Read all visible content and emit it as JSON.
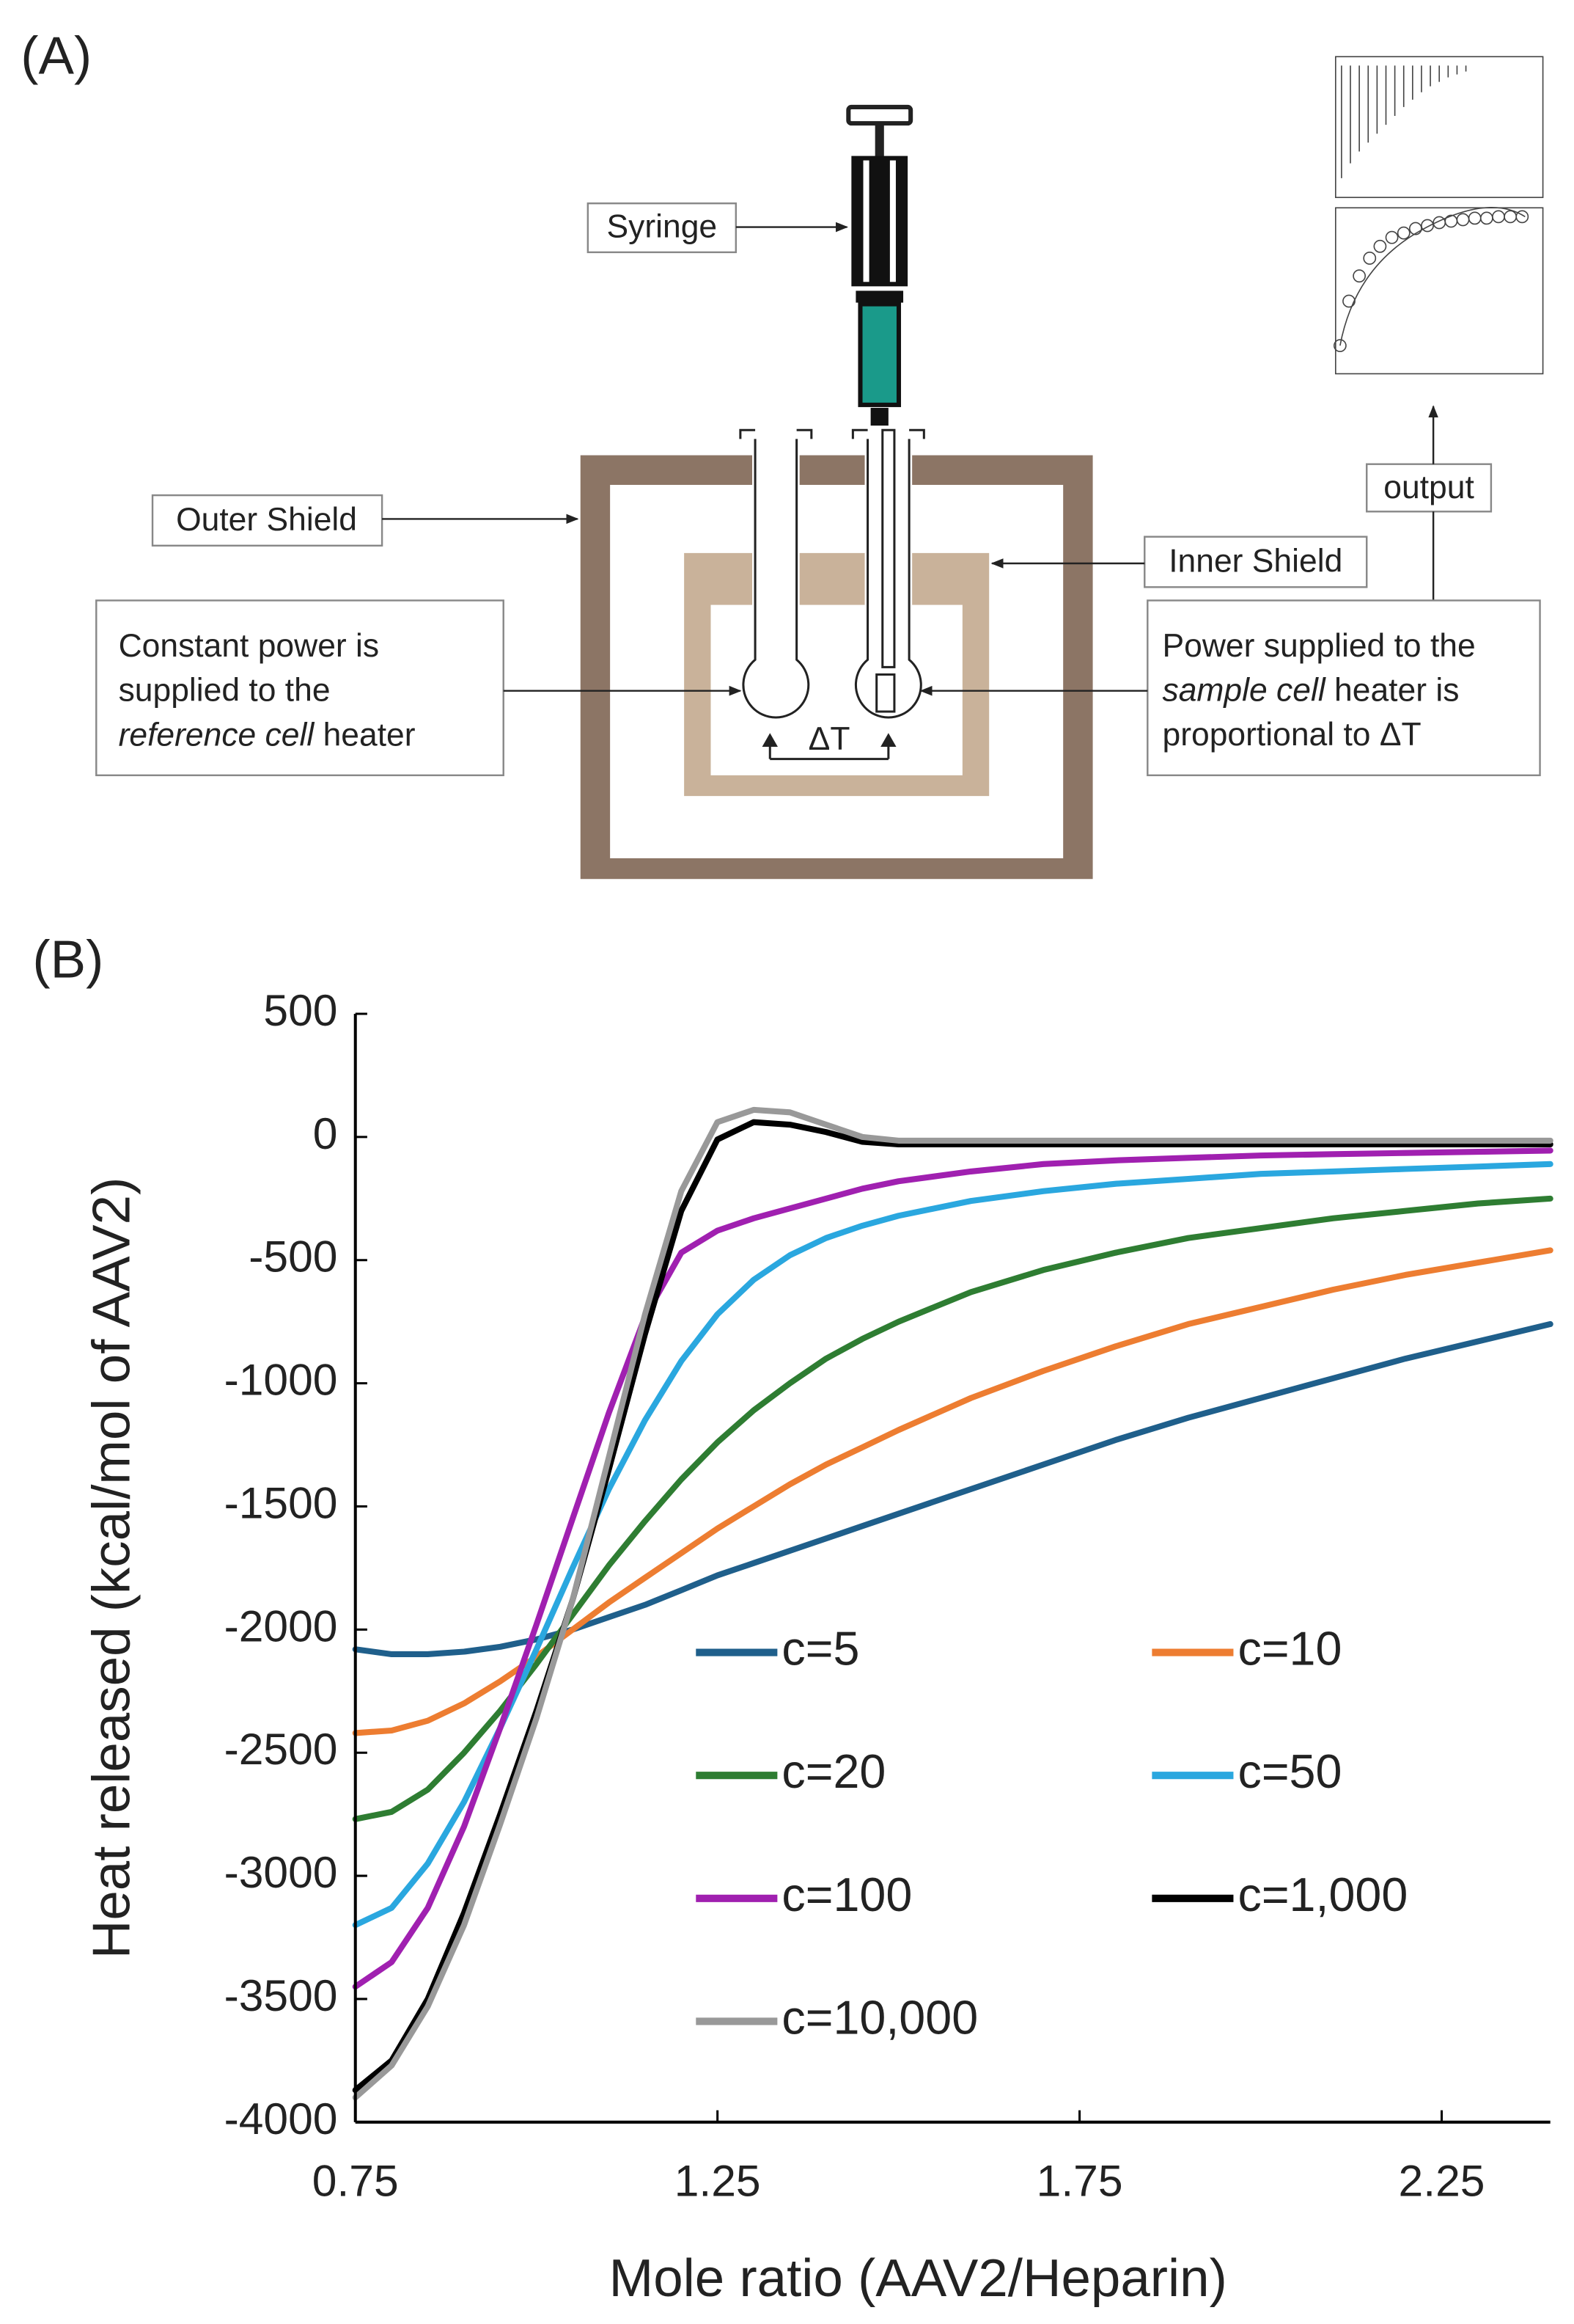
{
  "panel_a": {
    "label": "(A)",
    "syringe": "Syringe",
    "outer_shield": "Outer Shield",
    "inner_shield": "Inner Shield",
    "output": "output",
    "delta_t": "ΔT",
    "reference_note": {
      "line1": "Constant power is",
      "line2": "supplied to the",
      "italic": "reference cell",
      "end": "heater"
    },
    "sample_note": {
      "line1": "Power supplied to the",
      "italic": "sample cell",
      "mid": "heater is",
      "line3": "proportional to ΔT"
    }
  },
  "chart_data": {
    "type": "line",
    "panel_label": "(B)",
    "x_label": "Mole ratio (AAV2/Heparin)",
    "y_label": "Heat released  (kcal/mol of AAV2)",
    "x": [
      0.75,
      0.8,
      0.85,
      0.9,
      0.95,
      1.0,
      1.05,
      1.1,
      1.15,
      1.2,
      1.25,
      1.3,
      1.35,
      1.4,
      1.45,
      1.5,
      1.6,
      1.7,
      1.8,
      1.9,
      2.0,
      2.1,
      2.2,
      2.3,
      2.4
    ],
    "xlim": [
      0.75,
      2.4
    ],
    "xticks": [
      0.75,
      1.25,
      1.75,
      2.25
    ],
    "ylim": [
      -4000,
      500
    ],
    "yticks": [
      -4000,
      -3500,
      -3000,
      -2500,
      -2000,
      -1500,
      -1000,
      -500,
      0,
      500
    ],
    "series": [
      {
        "name": "c=5",
        "color": "#1f5f8b",
        "values": [
          -2080,
          -2100,
          -2100,
          -2090,
          -2070,
          -2040,
          -2000,
          -1950,
          -1900,
          -1840,
          -1780,
          -1730,
          -1680,
          -1630,
          -1580,
          -1530,
          -1430,
          -1330,
          -1230,
          -1140,
          -1060,
          -980,
          -900,
          -830,
          -760
        ]
      },
      {
        "name": "c=10",
        "color": "#ed7d31",
        "values": [
          -2420,
          -2410,
          -2370,
          -2300,
          -2210,
          -2110,
          -2000,
          -1890,
          -1790,
          -1690,
          -1590,
          -1500,
          -1410,
          -1330,
          -1260,
          -1190,
          -1060,
          -950,
          -850,
          -760,
          -690,
          -620,
          -560,
          -510,
          -460
        ]
      },
      {
        "name": "c=20",
        "color": "#2e7d32",
        "values": [
          -2770,
          -2740,
          -2650,
          -2500,
          -2330,
          -2140,
          -1940,
          -1740,
          -1560,
          -1390,
          -1240,
          -1110,
          -1000,
          -900,
          -820,
          -750,
          -630,
          -540,
          -470,
          -410,
          -370,
          -330,
          -300,
          -270,
          -250
        ]
      },
      {
        "name": "c=50",
        "color": "#2aa7df",
        "values": [
          -3200,
          -3130,
          -2950,
          -2700,
          -2400,
          -2080,
          -1750,
          -1430,
          -1150,
          -910,
          -720,
          -580,
          -480,
          -410,
          -360,
          -320,
          -260,
          -220,
          -190,
          -170,
          -150,
          -140,
          -130,
          -120,
          -110
        ]
      },
      {
        "name": "c=100",
        "color": "#a020b0",
        "values": [
          -3450,
          -3350,
          -3130,
          -2800,
          -2400,
          -1980,
          -1550,
          -1120,
          -730,
          -470,
          -380,
          -330,
          -290,
          -250,
          -210,
          -180,
          -140,
          -110,
          -95,
          -85,
          -75,
          -70,
          -65,
          -60,
          -55
        ]
      },
      {
        "name": "c=1,000",
        "color": "#000000",
        "values": [
          -3870,
          -3750,
          -3500,
          -3150,
          -2750,
          -2330,
          -1880,
          -1350,
          -800,
          -300,
          -10,
          60,
          50,
          20,
          -20,
          -30,
          -30,
          -30,
          -30,
          -30,
          -30,
          -30,
          -30,
          -30,
          -30
        ]
      },
      {
        "name": "c=10,000",
        "color": "#999999",
        "values": [
          -3900,
          -3770,
          -3530,
          -3200,
          -2790,
          -2360,
          -1880,
          -1300,
          -720,
          -220,
          60,
          110,
          100,
          50,
          0,
          -15,
          -15,
          -15,
          -15,
          -15,
          -15,
          -15,
          -15,
          -15,
          -15
        ]
      }
    ]
  }
}
